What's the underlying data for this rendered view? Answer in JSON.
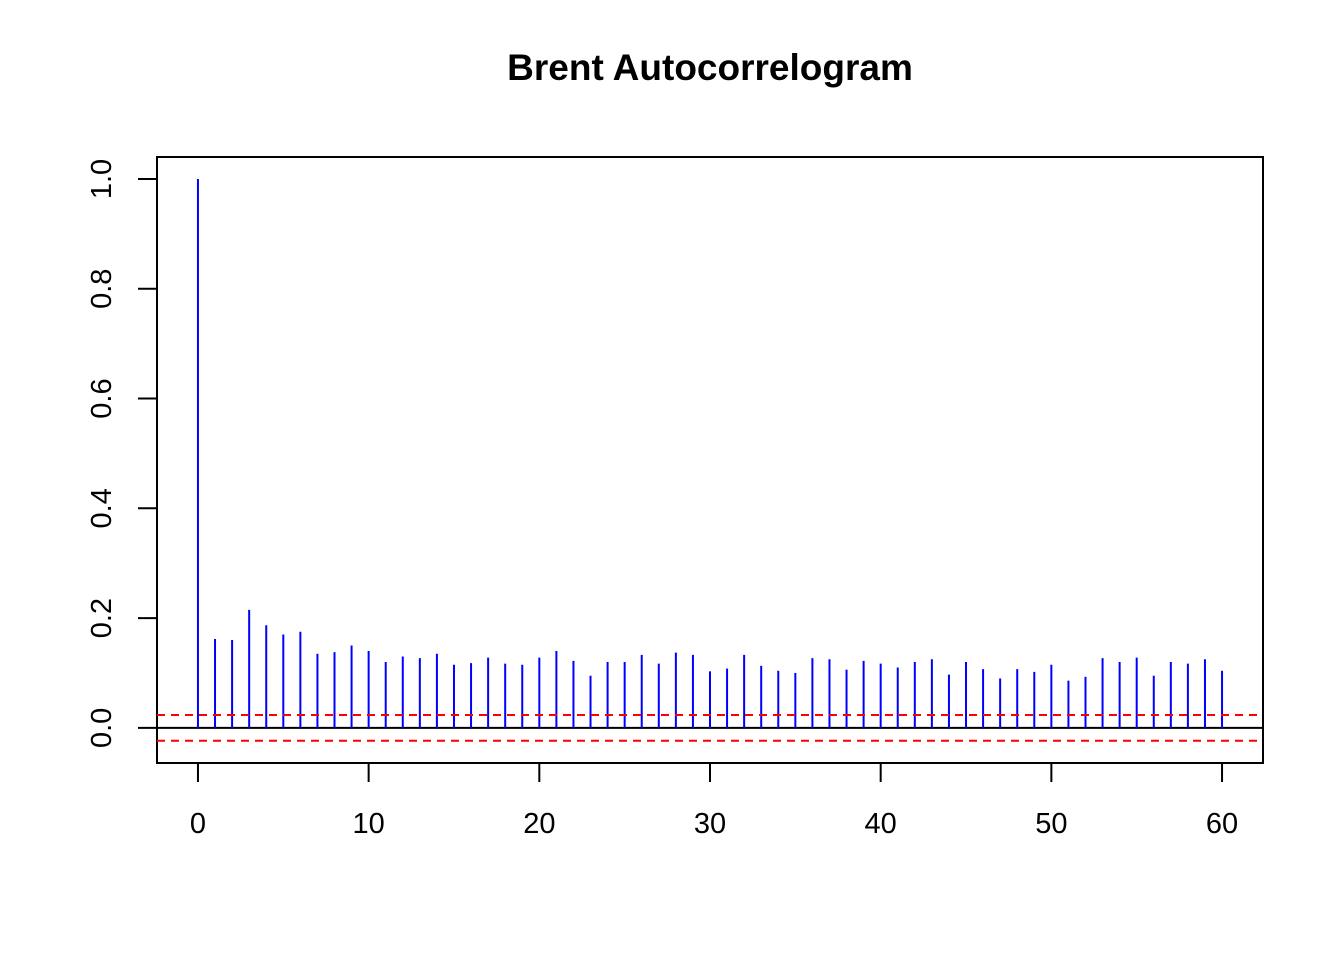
{
  "chart_data": {
    "type": "bar",
    "title": "Brent Autocorrelogram",
    "xlabel": "",
    "ylabel": "",
    "x": [
      0,
      1,
      2,
      3,
      4,
      5,
      6,
      7,
      8,
      9,
      10,
      11,
      12,
      13,
      14,
      15,
      16,
      17,
      18,
      19,
      20,
      21,
      22,
      23,
      24,
      25,
      26,
      27,
      28,
      29,
      30,
      31,
      32,
      33,
      34,
      35,
      36,
      37,
      38,
      39,
      40,
      41,
      42,
      43,
      44,
      45,
      46,
      47,
      48,
      49,
      50,
      51,
      52,
      53,
      54,
      55,
      56,
      57,
      58,
      59,
      60
    ],
    "values": [
      1.0,
      0.162,
      0.16,
      0.215,
      0.187,
      0.17,
      0.175,
      0.135,
      0.138,
      0.15,
      0.14,
      0.12,
      0.13,
      0.127,
      0.135,
      0.115,
      0.118,
      0.128,
      0.117,
      0.115,
      0.128,
      0.14,
      0.122,
      0.095,
      0.12,
      0.12,
      0.133,
      0.117,
      0.137,
      0.133,
      0.103,
      0.108,
      0.133,
      0.113,
      0.104,
      0.1,
      0.127,
      0.125,
      0.106,
      0.122,
      0.117,
      0.11,
      0.12,
      0.125,
      0.097,
      0.12,
      0.107,
      0.09,
      0.107,
      0.102,
      0.115,
      0.086,
      0.093,
      0.127,
      0.12,
      0.128,
      0.095,
      0.12,
      0.117,
      0.125,
      0.104
    ],
    "xticks": [
      "0",
      "10",
      "20",
      "30",
      "40",
      "50",
      "60"
    ],
    "yticks": [
      "0.0",
      "0.2",
      "0.4",
      "0.6",
      "0.8",
      "1.0"
    ],
    "xlim": [
      -2.4,
      62.4
    ],
    "ylim": [
      -0.064,
      1.04
    ],
    "confidence_bound": 0.0235,
    "colors": {
      "bars": "#0000ff",
      "confidence_lines": "#ff0000",
      "axis": "#000000"
    },
    "grid": false,
    "legend": "none"
  }
}
